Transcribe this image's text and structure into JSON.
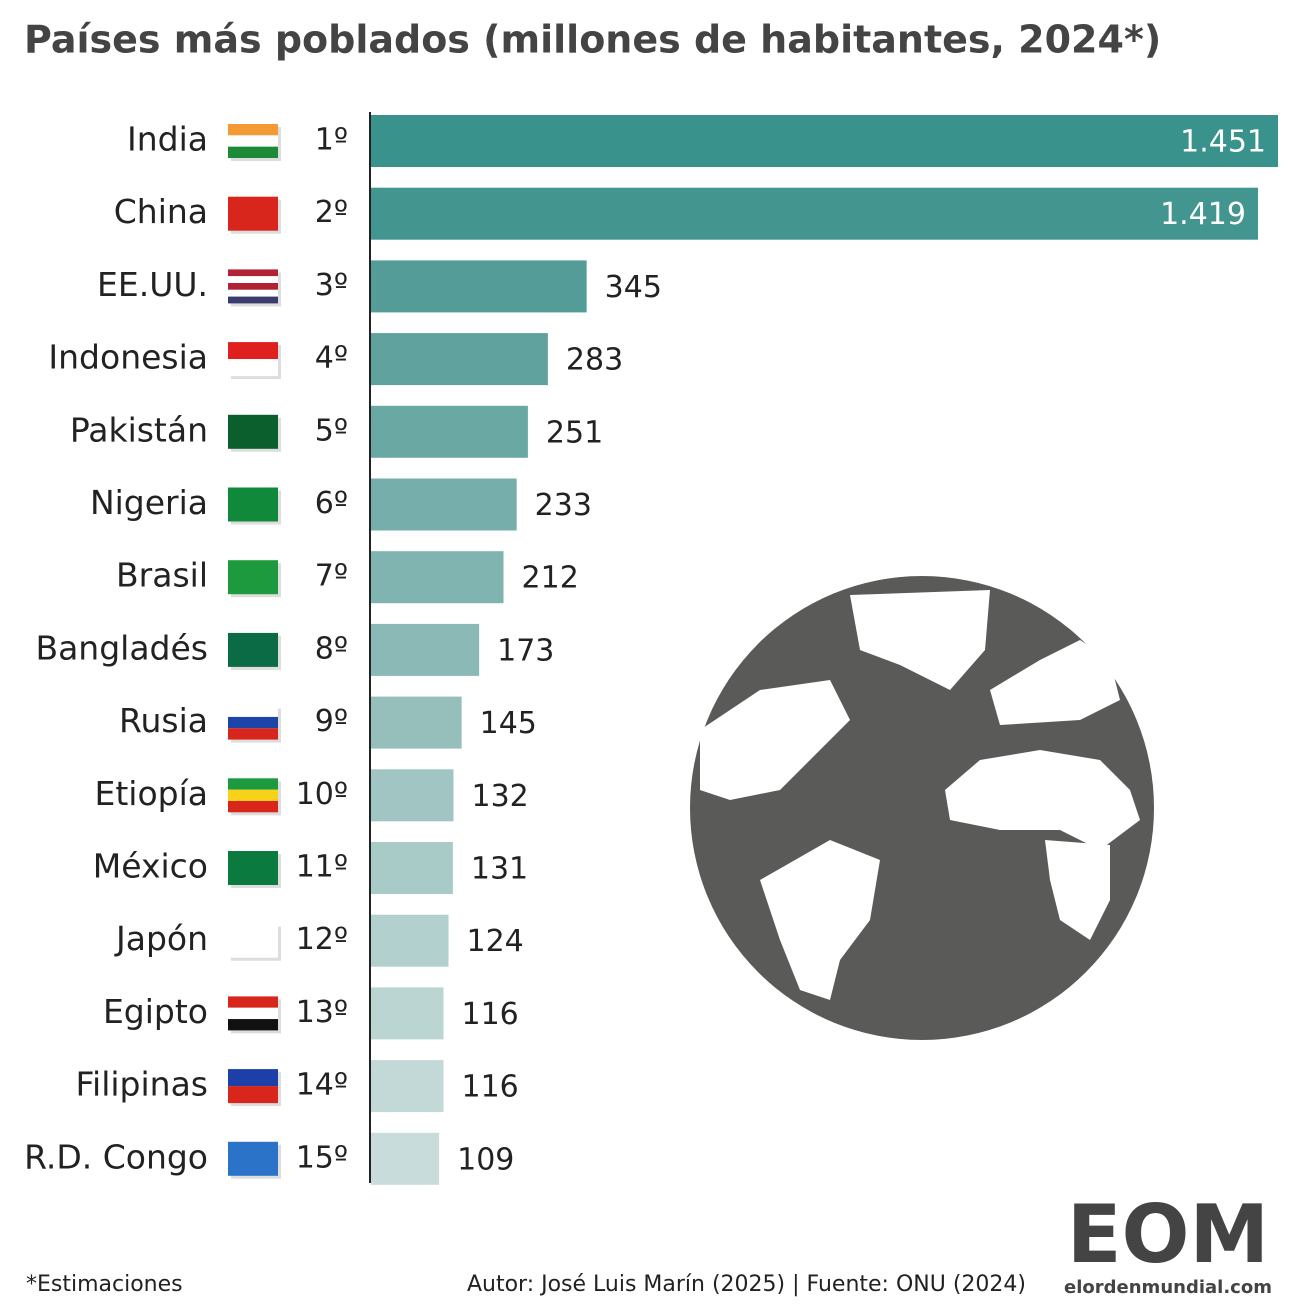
{
  "chart_data": {
    "type": "bar",
    "orientation": "horizontal",
    "title": "Países más poblados (millones de habitantes, 2024*)",
    "categories": [
      "India",
      "China",
      "EE.UU.",
      "Indonesia",
      "Pakistán",
      "Nigeria",
      "Brasil",
      "Bangladés",
      "Rusia",
      "Etiopía",
      "México",
      "Japón",
      "Egipto",
      "Filipinas",
      "R.D. Congo"
    ],
    "ranks": [
      "1º",
      "2º",
      "3º",
      "4º",
      "5º",
      "6º",
      "7º",
      "8º",
      "9º",
      "10º",
      "11º",
      "12º",
      "13º",
      "14º",
      "15º"
    ],
    "values": [
      1451,
      1419,
      345,
      283,
      251,
      233,
      212,
      173,
      145,
      132,
      131,
      124,
      116,
      116,
      109
    ],
    "value_labels": [
      "1.451",
      "1.419",
      "345",
      "283",
      "251",
      "233",
      "212",
      "173",
      "145",
      "132",
      "131",
      "124",
      "116",
      "116",
      "109"
    ],
    "colors": [
      "#3a928d",
      "#43968f",
      "#549c98",
      "#5fa29e",
      "#6aa8a4",
      "#75aeaa",
      "#80b4b0",
      "#8bbab6",
      "#96bfbc",
      "#a0c5c2",
      "#a9cbc8",
      "#b2d0ce",
      "#bbd5d3",
      "#c2d9d7",
      "#c8dcdb"
    ],
    "note": "*Estimaciones",
    "credit": "Autor: José Luis Marín (2025) | Fuente: ONU (2024)",
    "logo": "EOM",
    "logo_url": "elordenmundial.com"
  }
}
